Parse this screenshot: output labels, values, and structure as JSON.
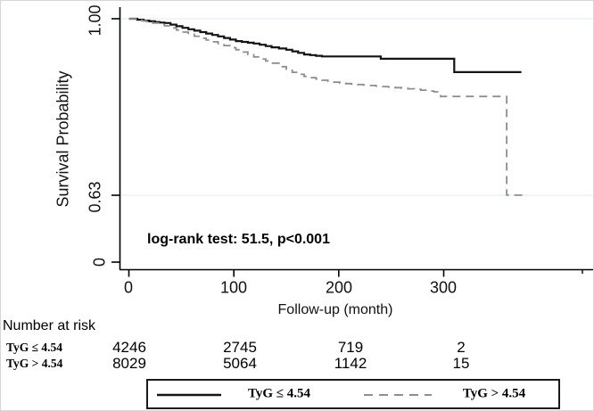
{
  "figure": {
    "y_axis": {
      "title": "Survival Probability",
      "ticks": [
        "1.00",
        "0.63",
        "0"
      ]
    },
    "x_axis": {
      "title": "Follow-up (month)",
      "ticks": [
        "0",
        "100",
        "200",
        "300"
      ]
    },
    "annotation": "log-rank test: 51.5, p<0.001",
    "risk_table": {
      "header": "Number at risk",
      "rows": [
        {
          "label": "TyG ≤ 4.54",
          "values": [
            "4246",
            "2745",
            "719",
            "2"
          ]
        },
        {
          "label": "TyG > 4.54",
          "values": [
            "8029",
            "5064",
            "1142",
            "15"
          ]
        }
      ]
    },
    "legend": [
      {
        "label": "TyG ≤ 4.54",
        "line": "solid",
        "color": "#141414"
      },
      {
        "label": "TyG > 4.54",
        "line": "dashed",
        "color": "#8e8e8e"
      }
    ]
  },
  "chart_data": {
    "type": "line",
    "subtype": "kaplan-meier-step",
    "xlabel": "Follow-up (month)",
    "ylabel": "Survival Probability",
    "x_ticks": [
      0,
      100,
      200,
      300
    ],
    "y_ticks": [
      1.0,
      0.63,
      0
    ],
    "xlim": [
      0,
      443
    ],
    "ylim_visible": [
      0.63,
      1.0
    ],
    "grid": "horizontal-light",
    "annotation": "log-rank test: 51.5, p<0.001",
    "grid_color": "#e2eff5",
    "series": [
      {
        "name": "TyG ≤ 4.54",
        "style": "solid",
        "color": "#141414",
        "points": [
          [
            0,
            1.0
          ],
          [
            8,
            0.998
          ],
          [
            14,
            0.996
          ],
          [
            25,
            0.993
          ],
          [
            34,
            0.991
          ],
          [
            51,
            0.981
          ],
          [
            68,
            0.972
          ],
          [
            85,
            0.963
          ],
          [
            102,
            0.953
          ],
          [
            119,
            0.948
          ],
          [
            136,
            0.94
          ],
          [
            150,
            0.935
          ],
          [
            167,
            0.925
          ],
          [
            184,
            0.921
          ],
          [
            240,
            0.921
          ],
          [
            240,
            0.916
          ],
          [
            310,
            0.916
          ],
          [
            310,
            0.888
          ],
          [
            374,
            0.888
          ]
        ]
      },
      {
        "name": "TyG > 4.54",
        "style": "dashed",
        "color": "#8e8e8e",
        "points": [
          [
            0,
            1.0
          ],
          [
            8,
            0.997
          ],
          [
            17,
            0.994
          ],
          [
            34,
            0.985
          ],
          [
            51,
            0.972
          ],
          [
            68,
            0.959
          ],
          [
            85,
            0.948
          ],
          [
            102,
            0.935
          ],
          [
            119,
            0.92
          ],
          [
            136,
            0.907
          ],
          [
            150,
            0.892
          ],
          [
            167,
            0.879
          ],
          [
            184,
            0.871
          ],
          [
            201,
            0.865
          ],
          [
            229,
            0.86
          ],
          [
            272,
            0.852
          ],
          [
            297,
            0.845
          ],
          [
            297,
            0.837
          ],
          [
            360,
            0.837
          ],
          [
            360,
            0.63
          ],
          [
            375,
            0.63
          ]
        ]
      }
    ],
    "number_at_risk": {
      "times": [
        0,
        100,
        200,
        300
      ],
      "groups": [
        {
          "name": "TyG ≤ 4.54",
          "counts": [
            4246,
            2745,
            719,
            2
          ]
        },
        {
          "name": "TyG > 4.54",
          "counts": [
            8029,
            5064,
            1142,
            15
          ]
        }
      ]
    }
  }
}
